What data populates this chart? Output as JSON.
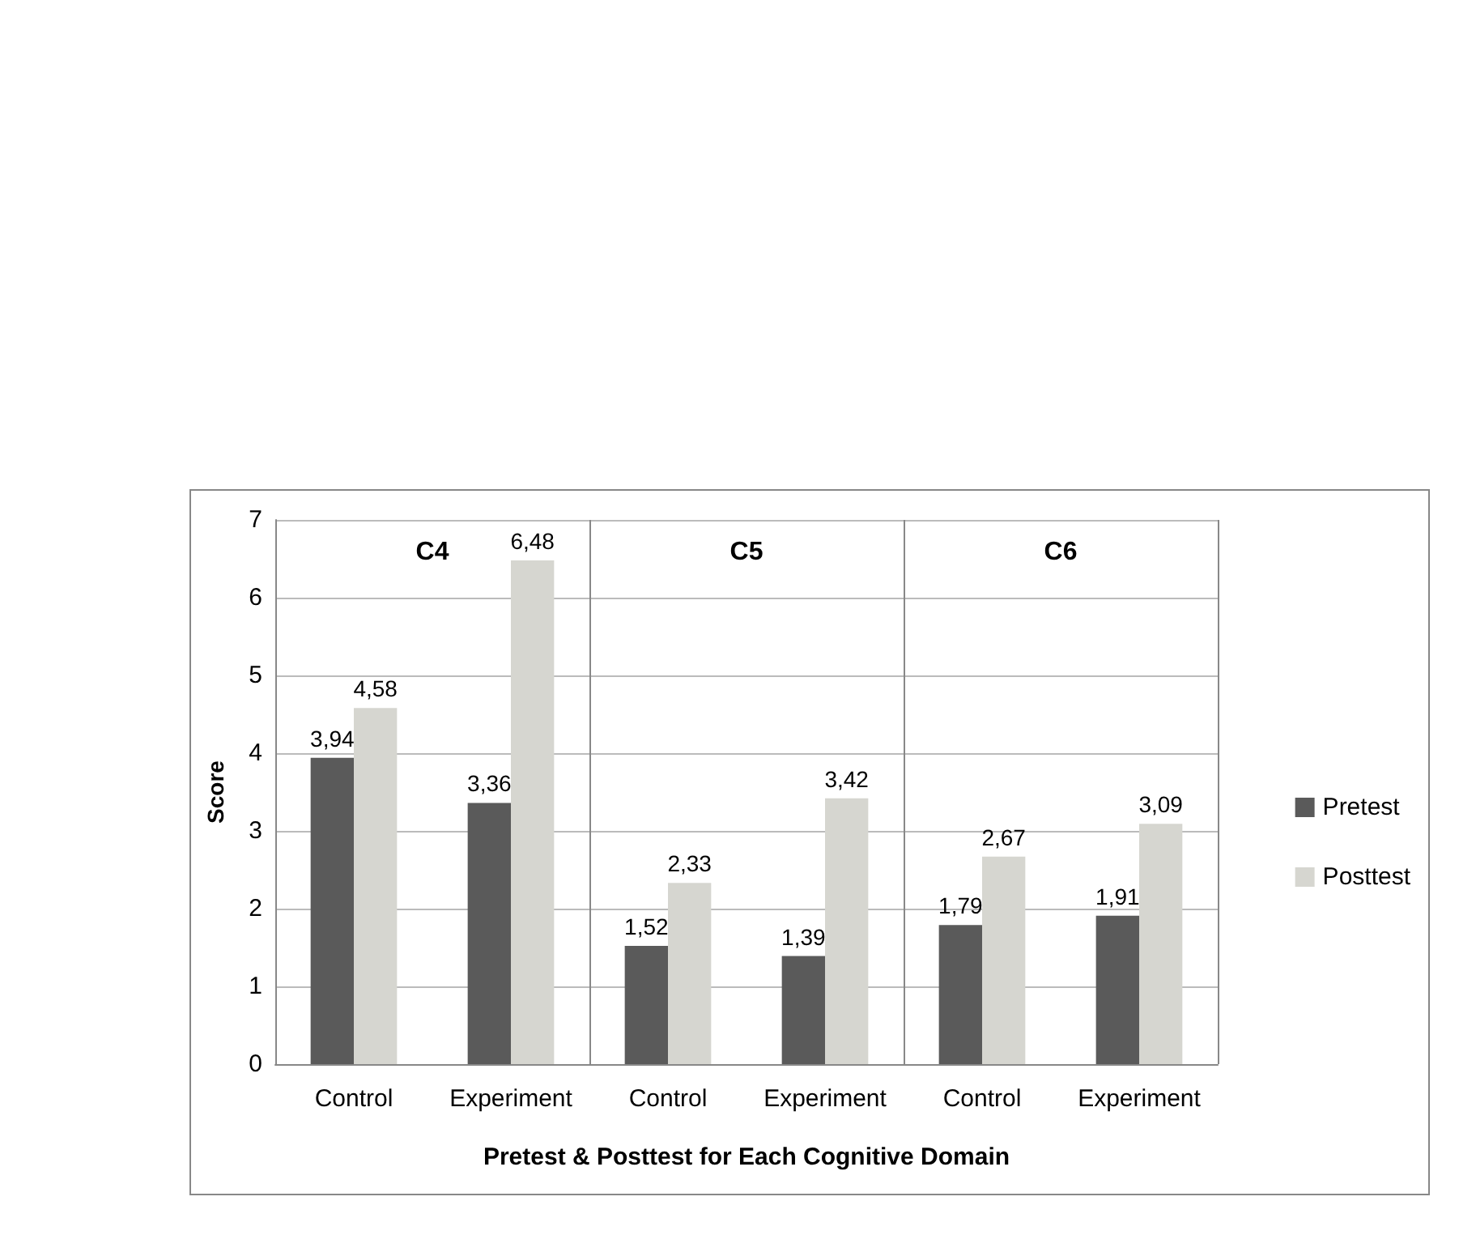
{
  "chart_data": {
    "type": "bar",
    "xlabel": "Pretest & Posttest for Each Cognitive Domain",
    "ylabel": "Score",
    "categories": [
      "Control",
      "Experiment",
      "Control",
      "Experiment",
      "Control",
      "Experiment"
    ],
    "series": [
      {
        "name": "Pretest",
        "color": "#5a5a5a",
        "values": [
          3.94,
          3.36,
          1.52,
          1.39,
          1.79,
          1.91
        ],
        "value_labels": [
          "3,94",
          "3,36",
          "1,52",
          "1,39",
          "1,79",
          "1,91"
        ]
      },
      {
        "name": "Posttest",
        "color": "#d6d6d0",
        "values": [
          4.58,
          6.48,
          2.33,
          3.42,
          2.67,
          3.09
        ],
        "value_labels": [
          "4,58",
          "6,48",
          "2,33",
          "3,42",
          "2,67",
          "3,09"
        ]
      }
    ],
    "ylim": [
      0,
      7
    ],
    "yticks": [
      0,
      1,
      2,
      3,
      4,
      5,
      6,
      7
    ],
    "grid": "y",
    "legend": "right",
    "annotations": [
      "C4",
      "C5",
      "C6"
    ]
  }
}
